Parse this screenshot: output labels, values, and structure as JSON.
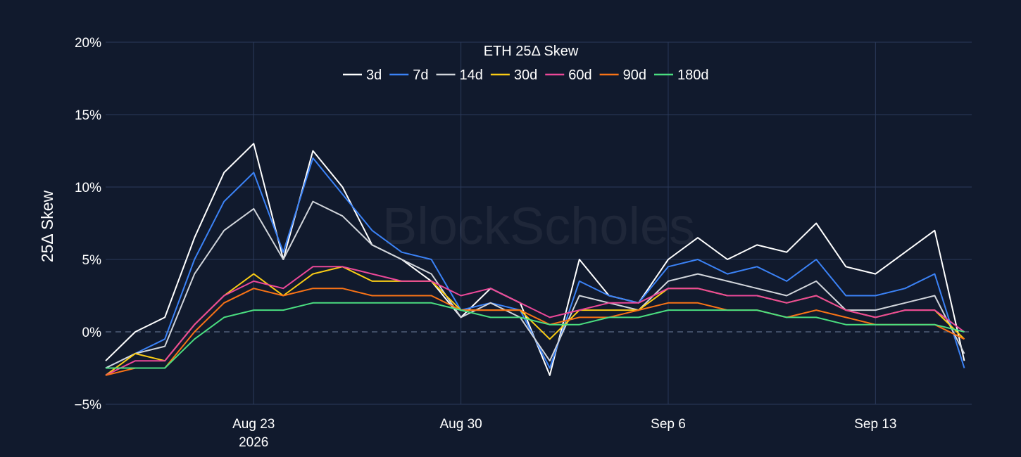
{
  "chart_data": {
    "type": "line",
    "title": "ETH 25Δ Skew",
    "ylabel": "25Δ Skew",
    "xlabel": "",
    "watermark": "BlockScholes",
    "x_range": [
      "2026-08-18",
      "2026-09-16T06:00"
    ],
    "ylim": [
      -5,
      20
    ],
    "y_ticks": [
      -5,
      0,
      5,
      10,
      15,
      20
    ],
    "y_tick_labels": [
      "−5%",
      "0%",
      "5%",
      "10%",
      "15%",
      "20%"
    ],
    "x_ticks": [
      {
        "date": "2026-08-23",
        "label": "Aug 23",
        "sublabel": "2026"
      },
      {
        "date": "2026-08-30",
        "label": "Aug 30",
        "sublabel": ""
      },
      {
        "date": "2026-09-06",
        "label": "Sep 6",
        "sublabel": ""
      },
      {
        "date": "2026-09-13",
        "label": "Sep 13",
        "sublabel": ""
      }
    ],
    "grid": true,
    "zero_line": "dashed",
    "legend_position": "top-center, horizontal",
    "background": "#111a2d",
    "gridline_color": "#2b3a5a",
    "x": [
      "2026-08-18",
      "2026-08-19",
      "2026-08-20",
      "2026-08-21",
      "2026-08-22",
      "2026-08-23",
      "2026-08-24",
      "2026-08-25",
      "2026-08-26",
      "2026-08-27",
      "2026-08-28",
      "2026-08-29",
      "2026-08-30",
      "2026-08-31",
      "2026-09-01",
      "2026-09-02",
      "2026-09-03",
      "2026-09-04",
      "2026-09-05",
      "2026-09-06",
      "2026-09-07",
      "2026-09-08",
      "2026-09-09",
      "2026-09-10",
      "2026-09-11",
      "2026-09-12",
      "2026-09-13",
      "2026-09-14",
      "2026-09-15",
      "2026-09-16"
    ],
    "series": [
      {
        "name": "3d",
        "color": "#ffffff",
        "values": [
          -2.0,
          0.0,
          1.0,
          6.5,
          11.0,
          13.0,
          5.0,
          12.5,
          10.0,
          6.0,
          5.0,
          3.5,
          1.0,
          3.0,
          2.0,
          -3.0,
          5.0,
          2.5,
          2.0,
          5.0,
          6.5,
          5.0,
          6.0,
          5.5,
          7.5,
          4.5,
          4.0,
          5.5,
          7.0,
          -2.0
        ]
      },
      {
        "name": "7d",
        "color": "#3b82f6",
        "values": [
          -2.5,
          -1.5,
          -0.5,
          5.0,
          9.0,
          11.0,
          5.5,
          12.0,
          9.5,
          7.0,
          5.5,
          5.0,
          1.5,
          2.0,
          1.5,
          -2.5,
          3.5,
          2.5,
          2.0,
          4.5,
          5.0,
          4.0,
          4.5,
          3.5,
          5.0,
          2.5,
          2.5,
          3.0,
          4.0,
          -2.5
        ]
      },
      {
        "name": "14d",
        "color": "#d1d5db",
        "values": [
          -2.5,
          -1.5,
          -1.0,
          4.0,
          7.0,
          8.5,
          5.0,
          9.0,
          8.0,
          6.0,
          5.0,
          4.0,
          1.0,
          2.0,
          1.0,
          -2.0,
          2.5,
          2.0,
          1.5,
          3.5,
          4.0,
          3.5,
          3.0,
          2.5,
          3.5,
          1.5,
          1.5,
          2.0,
          2.5,
          -1.5
        ]
      },
      {
        "name": "30d",
        "color": "#facc15",
        "values": [
          -3.0,
          -1.5,
          -2.0,
          0.5,
          2.5,
          4.0,
          2.5,
          4.0,
          4.5,
          3.5,
          3.5,
          3.5,
          1.5,
          1.5,
          1.5,
          -0.5,
          1.5,
          1.5,
          1.5,
          3.0,
          3.0,
          2.5,
          2.5,
          2.0,
          2.5,
          1.5,
          1.0,
          1.5,
          1.5,
          -0.5
        ]
      },
      {
        "name": "60d",
        "color": "#ec4899",
        "values": [
          -3.0,
          -2.0,
          -2.0,
          0.5,
          2.5,
          3.5,
          3.0,
          4.5,
          4.5,
          4.0,
          3.5,
          3.5,
          2.5,
          3.0,
          2.0,
          1.0,
          1.5,
          2.0,
          2.0,
          3.0,
          3.0,
          2.5,
          2.5,
          2.0,
          2.5,
          1.5,
          1.0,
          1.5,
          1.5,
          0.0
        ]
      },
      {
        "name": "90d",
        "color": "#f97316",
        "values": [
          -3.0,
          -2.5,
          -2.5,
          0.0,
          2.0,
          3.0,
          2.5,
          3.0,
          3.0,
          2.5,
          2.5,
          2.5,
          1.5,
          1.5,
          1.5,
          0.5,
          1.0,
          1.0,
          1.5,
          2.0,
          2.0,
          1.5,
          1.5,
          1.0,
          1.5,
          1.0,
          0.5,
          0.5,
          0.5,
          -0.5
        ]
      },
      {
        "name": "180d",
        "color": "#4ade80",
        "values": [
          -2.5,
          -2.5,
          -2.5,
          -0.5,
          1.0,
          1.5,
          1.5,
          2.0,
          2.0,
          2.0,
          2.0,
          2.0,
          1.5,
          1.0,
          1.0,
          0.5,
          0.5,
          1.0,
          1.0,
          1.5,
          1.5,
          1.5,
          1.5,
          1.0,
          1.0,
          0.5,
          0.5,
          0.5,
          0.5,
          0.0
        ]
      }
    ]
  }
}
